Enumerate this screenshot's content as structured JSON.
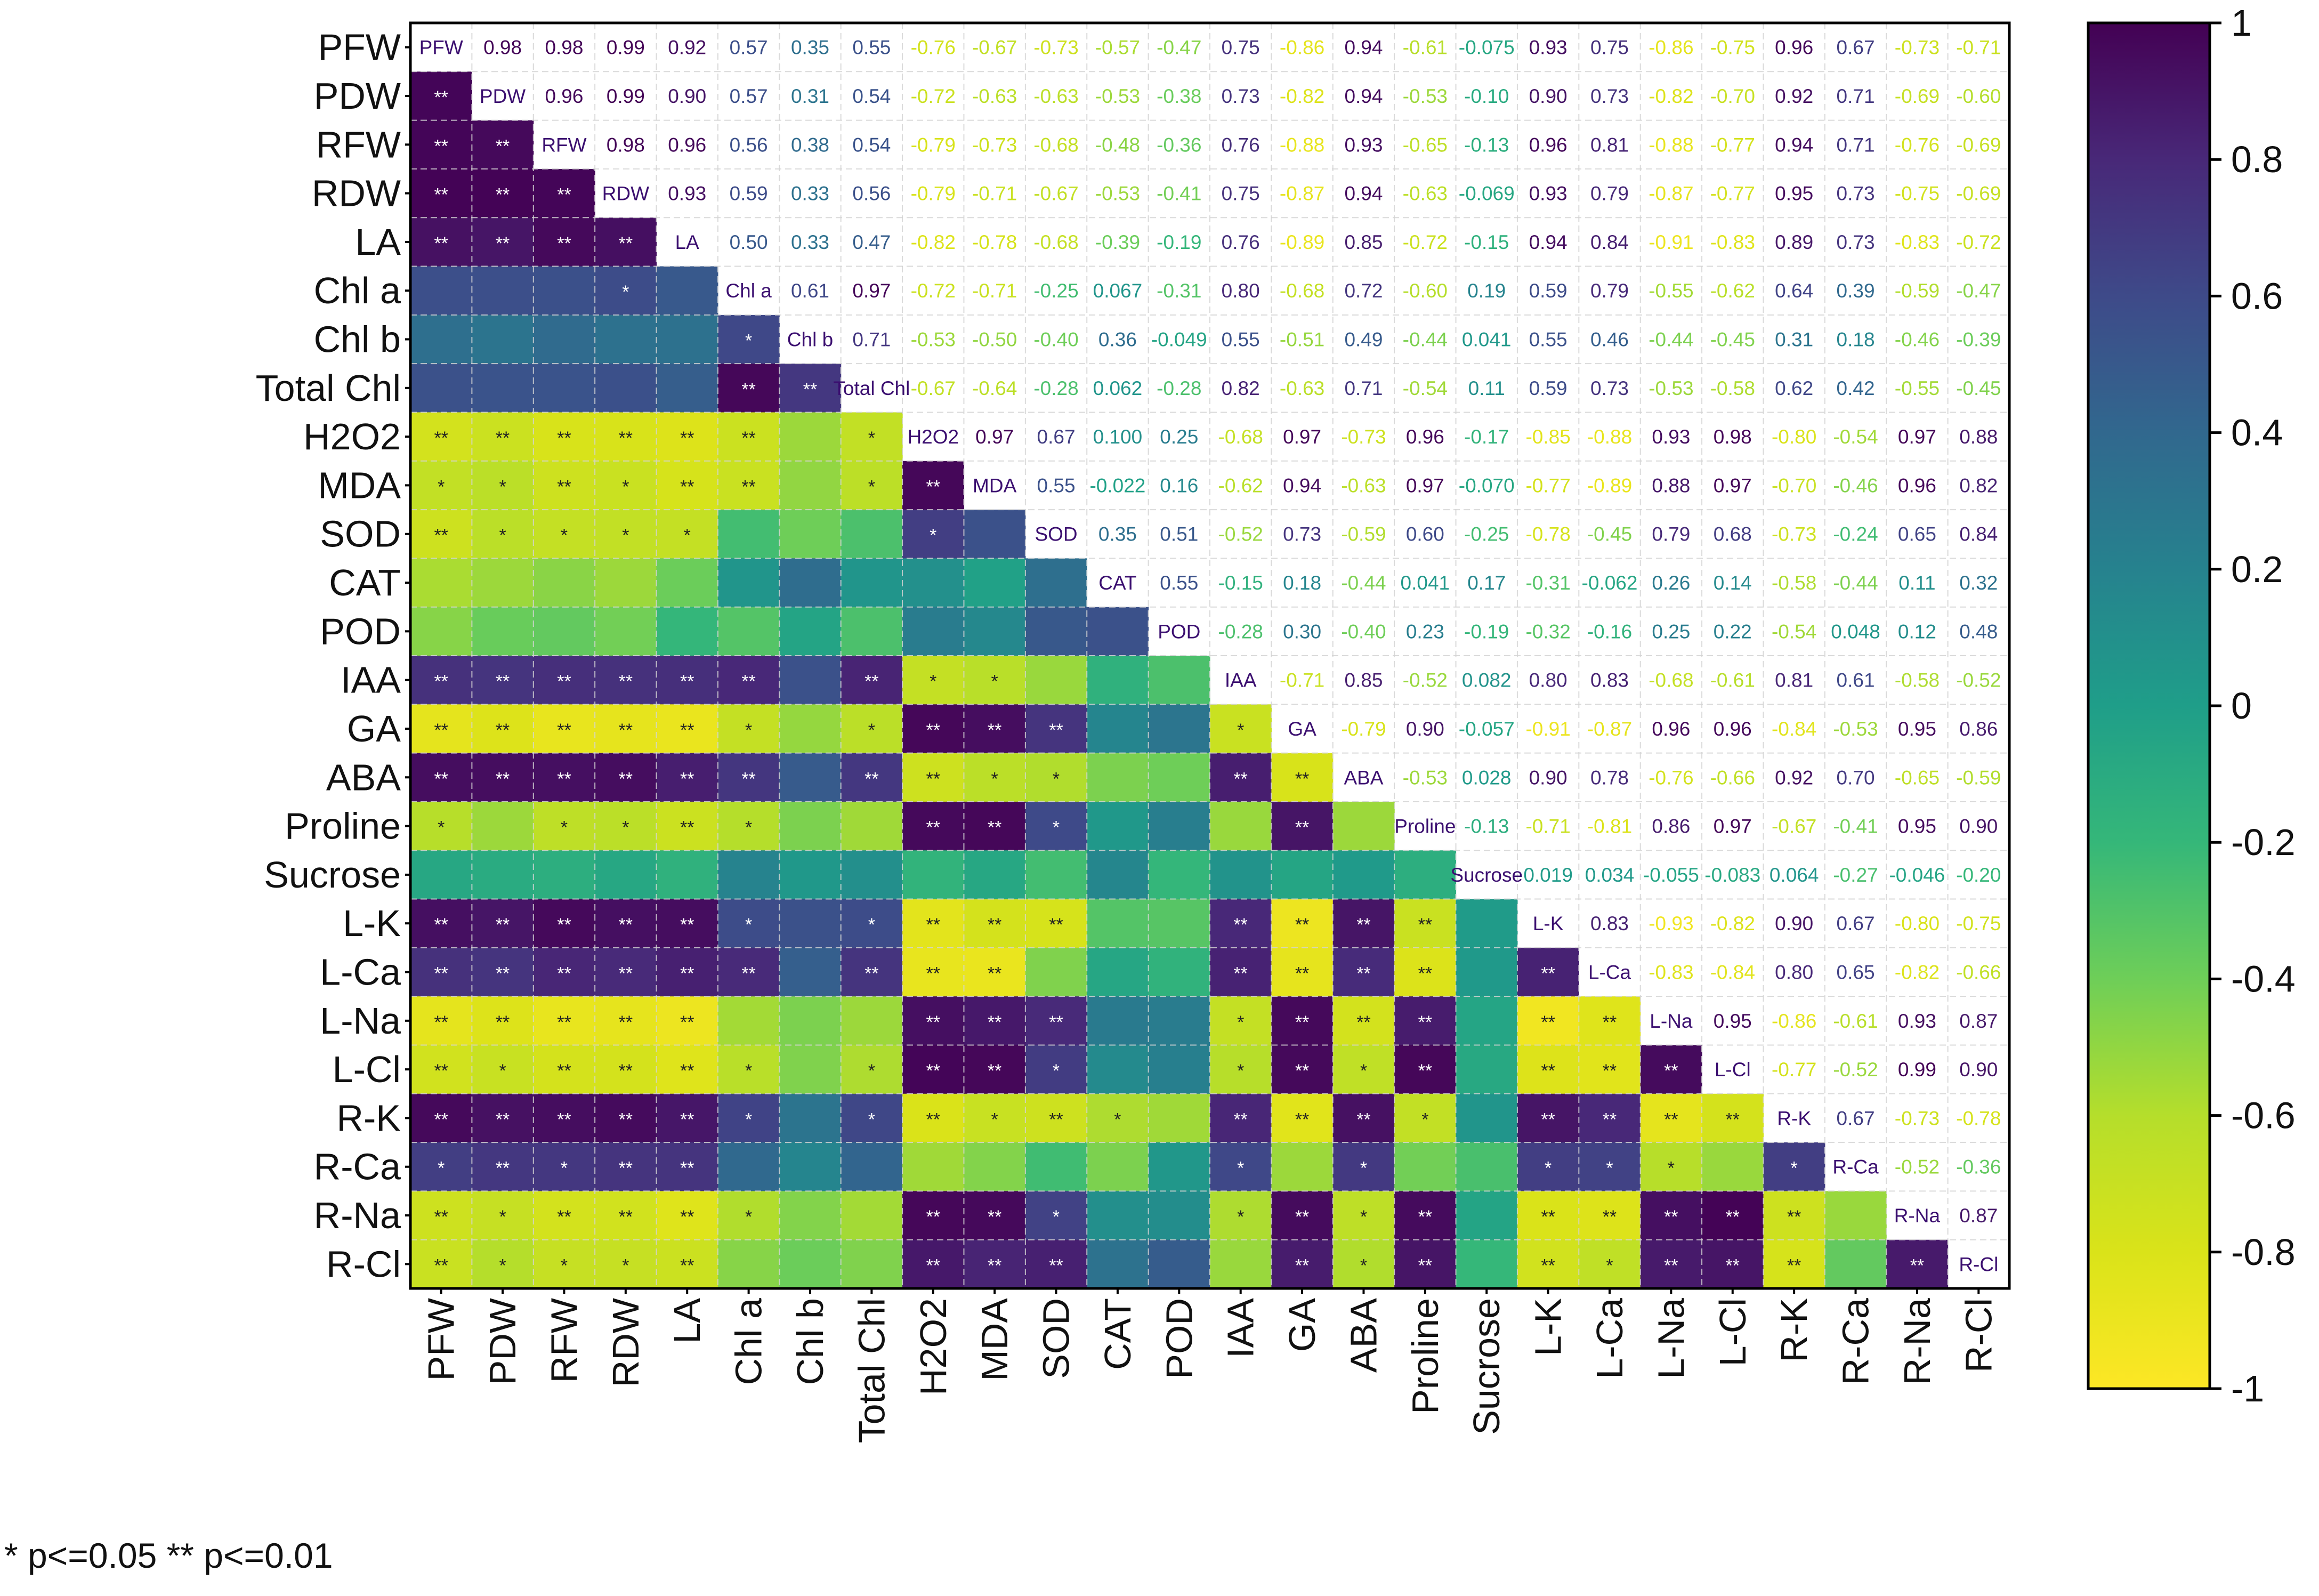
{
  "chart_data": {
    "type": "heatmap",
    "title": "",
    "variables": [
      "PFW",
      "PDW",
      "RFW",
      "RDW",
      "LA",
      "Chl a",
      "Chl b",
      "Total Chl",
      "H2O2",
      "MDA",
      "SOD",
      "CAT",
      "POD",
      "IAA",
      "GA",
      "ABA",
      "Proline",
      "Sucrose",
      "L-K",
      "L-Ca",
      "L-Na",
      "L-Cl",
      "R-K",
      "R-Ca",
      "R-Na",
      "R-Cl"
    ],
    "upper_value_labels": [
      [
        "0.98",
        "0.98",
        "0.99",
        "0.92",
        "0.57",
        "0.35",
        "0.55",
        "-0.76",
        "-0.67",
        "-0.73",
        "-0.57",
        "-0.47",
        "0.75",
        "-0.86",
        "0.94",
        "-0.61",
        "-0.075",
        "0.93",
        "0.75",
        "-0.86",
        "-0.75",
        "0.96",
        "0.67",
        "-0.73",
        "-0.71"
      ],
      [
        "0.96",
        "0.99",
        "0.90",
        "0.57",
        "0.31",
        "0.54",
        "-0.72",
        "-0.63",
        "-0.63",
        "-0.53",
        "-0.38",
        "0.73",
        "-0.82",
        "0.94",
        "-0.53",
        "-0.10",
        "0.90",
        "0.73",
        "-0.82",
        "-0.70",
        "0.92",
        "0.71",
        "-0.69",
        "-0.60"
      ],
      [
        "0.98",
        "0.96",
        "0.56",
        "0.38",
        "0.54",
        "-0.79",
        "-0.73",
        "-0.68",
        "-0.48",
        "-0.36",
        "0.76",
        "-0.88",
        "0.93",
        "-0.65",
        "-0.13",
        "0.96",
        "0.81",
        "-0.88",
        "-0.77",
        "0.94",
        "0.71",
        "-0.76",
        "-0.69"
      ],
      [
        "0.93",
        "0.59",
        "0.33",
        "0.56",
        "-0.79",
        "-0.71",
        "-0.67",
        "-0.53",
        "-0.41",
        "0.75",
        "-0.87",
        "0.94",
        "-0.63",
        "-0.069",
        "0.93",
        "0.79",
        "-0.87",
        "-0.77",
        "0.95",
        "0.73",
        "-0.75",
        "-0.69"
      ],
      [
        "0.50",
        "0.33",
        "0.47",
        "-0.82",
        "-0.78",
        "-0.68",
        "-0.39",
        "-0.19",
        "0.76",
        "-0.89",
        "0.85",
        "-0.72",
        "-0.15",
        "0.94",
        "0.84",
        "-0.91",
        "-0.83",
        "0.89",
        "0.73",
        "-0.83",
        "-0.72"
      ],
      [
        "0.61",
        "0.97",
        "-0.72",
        "-0.71",
        "-0.25",
        "0.067",
        "-0.31",
        "0.80",
        "-0.68",
        "0.72",
        "-0.60",
        "0.19",
        "0.59",
        "0.79",
        "-0.55",
        "-0.62",
        "0.64",
        "0.39",
        "-0.59",
        "-0.47"
      ],
      [
        "0.71",
        "-0.53",
        "-0.50",
        "-0.40",
        "0.36",
        "-0.049",
        "0.55",
        "-0.51",
        "0.49",
        "-0.44",
        "0.041",
        "0.55",
        "0.46",
        "-0.44",
        "-0.45",
        "0.31",
        "0.18",
        "-0.46",
        "-0.39"
      ],
      [
        "-0.67",
        "-0.64",
        "-0.28",
        "0.062",
        "-0.28",
        "0.82",
        "-0.63",
        "0.71",
        "-0.54",
        "0.11",
        "0.59",
        "0.73",
        "-0.53",
        "-0.58",
        "0.62",
        "0.42",
        "-0.55",
        "-0.45"
      ],
      [
        "0.97",
        "0.67",
        "0.100",
        "0.25",
        "-0.68",
        "0.97",
        "-0.73",
        "0.96",
        "-0.17",
        "-0.85",
        "-0.88",
        "0.93",
        "0.98",
        "-0.80",
        "-0.54",
        "0.97",
        "0.88"
      ],
      [
        "0.55",
        "-0.022",
        "0.16",
        "-0.62",
        "0.94",
        "-0.63",
        "0.97",
        "-0.070",
        "-0.77",
        "-0.89",
        "0.88",
        "0.97",
        "-0.70",
        "-0.46",
        "0.96",
        "0.82"
      ],
      [
        "0.35",
        "0.51",
        "-0.52",
        "0.73",
        "-0.59",
        "0.60",
        "-0.25",
        "-0.78",
        "-0.45",
        "0.79",
        "0.68",
        "-0.73",
        "-0.24",
        "0.65",
        "0.84"
      ],
      [
        "0.55",
        "-0.15",
        "0.18",
        "-0.44",
        "0.041",
        "0.17",
        "-0.31",
        "-0.062",
        "0.26",
        "0.14",
        "-0.58",
        "-0.44",
        "0.11",
        "0.32"
      ],
      [
        "-0.28",
        "0.30",
        "-0.40",
        "0.23",
        "-0.19",
        "-0.32",
        "-0.16",
        "0.25",
        "0.22",
        "-0.54",
        "0.048",
        "0.12",
        "0.48"
      ],
      [
        "-0.71",
        "0.85",
        "-0.52",
        "0.082",
        "0.80",
        "0.83",
        "-0.68",
        "-0.61",
        "0.81",
        "0.61",
        "-0.58",
        "-0.52"
      ],
      [
        "-0.79",
        "0.90",
        "-0.057",
        "-0.91",
        "-0.87",
        "0.96",
        "0.96",
        "-0.84",
        "-0.53",
        "0.95",
        "0.86"
      ],
      [
        "-0.53",
        "0.028",
        "0.90",
        "0.78",
        "-0.76",
        "-0.66",
        "0.92",
        "0.70",
        "-0.65",
        "-0.59"
      ],
      [
        "-0.13",
        "-0.71",
        "-0.81",
        "0.86",
        "0.97",
        "-0.67",
        "-0.41",
        "0.95",
        "0.90"
      ],
      [
        "0.019",
        "0.034",
        "-0.055",
        "-0.083",
        "0.064",
        "-0.27",
        "-0.046",
        "-0.20"
      ],
      [
        "0.83",
        "-0.93",
        "-0.82",
        "0.90",
        "0.67",
        "-0.80",
        "-0.75"
      ],
      [
        "-0.83",
        "-0.84",
        "0.80",
        "0.65",
        "-0.82",
        "-0.66"
      ],
      [
        "0.95",
        "-0.86",
        "-0.61",
        "0.93",
        "0.87"
      ],
      [
        "-0.77",
        "-0.52",
        "0.99",
        "0.90"
      ],
      [
        "0.67",
        "-0.73",
        "-0.78"
      ],
      [
        "-0.52",
        "-0.36"
      ],
      [
        "0.87"
      ],
      []
    ],
    "lower_significance": [
      [],
      [
        "**"
      ],
      [
        "**",
        "**"
      ],
      [
        "**",
        "**",
        "**"
      ],
      [
        "**",
        "**",
        "**",
        "**"
      ],
      [
        "",
        "",
        "",
        "*",
        ""
      ],
      [
        "",
        "",
        "",
        "",
        "",
        "*"
      ],
      [
        "",
        "",
        "",
        "",
        "",
        "**",
        "**"
      ],
      [
        "**",
        "**",
        "**",
        "**",
        "**",
        "**",
        "",
        "*"
      ],
      [
        "*",
        "*",
        "**",
        "*",
        "**",
        "**",
        "",
        "*",
        "**"
      ],
      [
        "**",
        "*",
        "*",
        "*",
        "*",
        "",
        "",
        "",
        "*",
        ""
      ],
      [
        "",
        "",
        "",
        "",
        "",
        "",
        "",
        "",
        "",
        "",
        ""
      ],
      [
        "",
        "",
        "",
        "",
        "",
        "",
        "",
        "",
        "",
        "",
        "",
        ""
      ],
      [
        "**",
        "**",
        "**",
        "**",
        "**",
        "**",
        "",
        "**",
        "*",
        "*",
        "",
        "",
        ""
      ],
      [
        "**",
        "**",
        "**",
        "**",
        "**",
        "*",
        "",
        "*",
        "**",
        "**",
        "**",
        "",
        "",
        "*"
      ],
      [
        "**",
        "**",
        "**",
        "**",
        "**",
        "**",
        "",
        "**",
        "**",
        "*",
        "*",
        "",
        "",
        "**",
        "**"
      ],
      [
        "*",
        "",
        "*",
        "*",
        "**",
        "*",
        "",
        "",
        "**",
        "**",
        "*",
        "",
        "",
        "",
        "**",
        ""
      ],
      [
        "",
        "",
        "",
        "",
        "",
        "",
        "",
        "",
        "",
        "",
        "",
        "",
        "",
        "",
        "",
        "",
        ""
      ],
      [
        "**",
        "**",
        "**",
        "**",
        "**",
        "*",
        "",
        "*",
        "**",
        "**",
        "**",
        "",
        "",
        "**",
        "**",
        "**",
        "**",
        ""
      ],
      [
        "**",
        "**",
        "**",
        "**",
        "**",
        "**",
        "",
        "**",
        "**",
        "**",
        "",
        "",
        "",
        "**",
        "**",
        "**",
        "**",
        "",
        "**"
      ],
      [
        "**",
        "**",
        "**",
        "**",
        "**",
        "",
        "",
        "",
        "**",
        "**",
        "**",
        "",
        "",
        "*",
        "**",
        "**",
        "**",
        "",
        "**",
        "**"
      ],
      [
        "**",
        "*",
        "**",
        "**",
        "**",
        "*",
        "",
        "*",
        "**",
        "**",
        "*",
        "",
        "",
        "*",
        "**",
        "*",
        "**",
        "",
        "**",
        "**",
        "**"
      ],
      [
        "**",
        "**",
        "**",
        "**",
        "**",
        "*",
        "",
        "*",
        "**",
        "*",
        "**",
        "*",
        "",
        "**",
        "**",
        "**",
        "*",
        "",
        "**",
        "**",
        "**",
        "**"
      ],
      [
        "*",
        "**",
        "*",
        "**",
        "**",
        "",
        "",
        "",
        "",
        "",
        "",
        "",
        "",
        "*",
        "",
        "*",
        "",
        "",
        "*",
        "*",
        "*",
        "",
        "*"
      ],
      [
        "**",
        "*",
        "**",
        "**",
        "**",
        "*",
        "",
        "",
        "**",
        "**",
        "*",
        "",
        "",
        "*",
        "**",
        "*",
        "**",
        "",
        "**",
        "**",
        "**",
        "**",
        "**",
        ""
      ],
      [
        "**",
        "*",
        "*",
        "*",
        "**",
        "",
        "",
        "",
        "**",
        "**",
        "**",
        "",
        "",
        "",
        "**",
        "*",
        "**",
        "",
        "**",
        "*",
        "**",
        "**",
        "**",
        "",
        "**"
      ]
    ],
    "lower_values": [
      [],
      [
        0.98
      ],
      [
        0.98,
        0.96
      ],
      [
        0.99,
        0.99,
        0.98
      ],
      [
        0.92,
        0.9,
        0.96,
        0.93
      ],
      [
        0.57,
        0.57,
        0.56,
        0.59,
        0.5
      ],
      [
        0.35,
        0.31,
        0.38,
        0.33,
        0.33,
        0.61
      ],
      [
        0.55,
        0.54,
        0.54,
        0.56,
        0.47,
        0.97,
        0.71
      ],
      [
        -0.76,
        -0.72,
        -0.79,
        -0.79,
        -0.82,
        -0.72,
        -0.53,
        -0.67
      ],
      [
        -0.67,
        -0.63,
        -0.73,
        -0.71,
        -0.78,
        -0.71,
        -0.5,
        -0.64,
        0.97
      ],
      [
        -0.73,
        -0.63,
        -0.68,
        -0.67,
        -0.68,
        -0.25,
        -0.4,
        -0.28,
        0.67,
        0.55
      ],
      [
        -0.57,
        -0.53,
        -0.48,
        -0.53,
        -0.39,
        0.067,
        0.36,
        0.062,
        0.1,
        -0.022,
        0.35
      ],
      [
        -0.47,
        -0.38,
        -0.36,
        -0.41,
        -0.19,
        -0.31,
        -0.049,
        -0.28,
        0.25,
        0.16,
        0.51,
        0.55
      ],
      [
        0.75,
        0.73,
        0.76,
        0.75,
        0.76,
        0.8,
        0.55,
        0.82,
        -0.68,
        -0.62,
        -0.52,
        -0.15,
        -0.28
      ],
      [
        -0.86,
        -0.82,
        -0.88,
        -0.87,
        -0.89,
        -0.68,
        -0.51,
        -0.63,
        0.97,
        0.94,
        0.73,
        0.18,
        0.3,
        -0.71
      ],
      [
        0.94,
        0.94,
        0.93,
        0.94,
        0.85,
        0.72,
        0.49,
        0.71,
        -0.73,
        -0.63,
        -0.59,
        -0.44,
        -0.4,
        0.85,
        -0.79
      ],
      [
        -0.61,
        -0.53,
        -0.65,
        -0.63,
        -0.72,
        -0.6,
        -0.44,
        -0.54,
        0.96,
        0.97,
        0.6,
        0.041,
        0.23,
        -0.52,
        0.9,
        -0.53
      ],
      [
        -0.075,
        -0.1,
        -0.13,
        -0.069,
        -0.15,
        0.19,
        0.041,
        0.11,
        -0.17,
        -0.07,
        -0.25,
        0.17,
        -0.19,
        0.082,
        -0.057,
        0.028,
        -0.13
      ],
      [
        0.93,
        0.9,
        0.96,
        0.93,
        0.94,
        0.59,
        0.55,
        0.59,
        -0.85,
        -0.77,
        -0.78,
        -0.31,
        -0.32,
        0.8,
        -0.91,
        0.9,
        -0.71,
        0.019
      ],
      [
        0.75,
        0.73,
        0.81,
        0.79,
        0.84,
        0.79,
        0.46,
        0.73,
        -0.88,
        -0.89,
        -0.45,
        -0.062,
        -0.16,
        0.83,
        -0.87,
        0.78,
        -0.81,
        0.034,
        0.83
      ],
      [
        -0.86,
        -0.82,
        -0.88,
        -0.87,
        -0.91,
        -0.55,
        -0.44,
        -0.53,
        0.93,
        0.88,
        0.79,
        0.26,
        0.25,
        -0.68,
        0.96,
        -0.76,
        0.86,
        -0.055,
        -0.93,
        -0.83
      ],
      [
        -0.75,
        -0.7,
        -0.77,
        -0.77,
        -0.83,
        -0.62,
        -0.45,
        -0.58,
        0.98,
        0.97,
        0.68,
        0.14,
        0.22,
        -0.61,
        0.96,
        -0.66,
        0.97,
        -0.083,
        -0.82,
        -0.84,
        0.95
      ],
      [
        0.96,
        0.92,
        0.94,
        0.95,
        0.89,
        0.64,
        0.31,
        0.62,
        -0.8,
        -0.7,
        -0.73,
        -0.58,
        -0.54,
        0.81,
        -0.84,
        0.92,
        -0.67,
        0.064,
        0.9,
        0.8,
        -0.86,
        -0.77
      ],
      [
        0.67,
        0.71,
        0.71,
        0.73,
        0.73,
        0.39,
        0.18,
        0.42,
        -0.54,
        -0.46,
        -0.24,
        -0.44,
        0.048,
        0.61,
        -0.53,
        0.7,
        -0.41,
        -0.27,
        0.67,
        0.65,
        -0.61,
        -0.52,
        0.67
      ],
      [
        -0.73,
        -0.69,
        -0.76,
        -0.75,
        -0.83,
        -0.59,
        -0.46,
        -0.55,
        0.97,
        0.96,
        0.65,
        0.11,
        0.12,
        -0.58,
        0.95,
        -0.65,
        0.95,
        -0.046,
        -0.8,
        -0.82,
        0.93,
        0.99,
        -0.73,
        -0.52
      ],
      [
        -0.71,
        -0.6,
        -0.69,
        -0.69,
        -0.72,
        -0.47,
        -0.39,
        -0.45,
        0.88,
        0.82,
        0.84,
        0.32,
        0.48,
        -0.52,
        0.86,
        -0.59,
        0.9,
        -0.2,
        -0.75,
        -0.66,
        0.87,
        0.9,
        -0.78,
        -0.36,
        0.87
      ]
    ],
    "colorbar": {
      "range": [
        -1,
        1
      ],
      "tick_labels": [
        "1",
        "0.8",
        "0.6",
        "0.4",
        "0.2",
        "0",
        "-0.2",
        "-0.4",
        "-0.6",
        "-0.8",
        "-1"
      ]
    },
    "colors": {
      "viridis_dark": "#440154",
      "viridis_blue": "#31688e",
      "viridis_teal": "#21918c",
      "viridis_green": "#35b779",
      "viridis_yellow": "#fde725"
    },
    "note": "* p<=0.05  ** p<=0.01"
  }
}
